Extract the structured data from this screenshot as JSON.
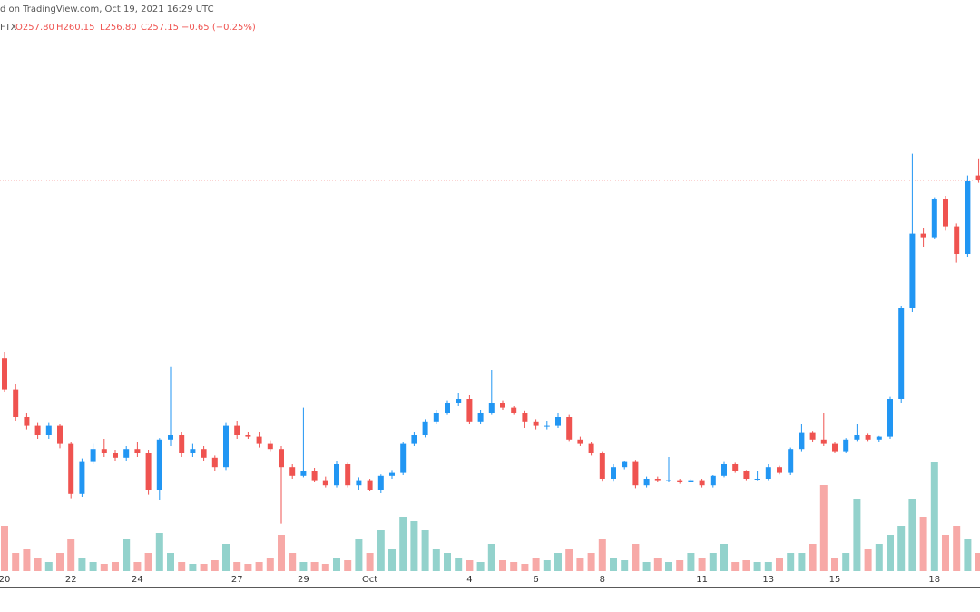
{
  "chart_data": {
    "type": "candlestick",
    "header": {
      "caption": "d on TradingView.com, Oct 19, 2021 16:29 UTC",
      "symbol": "FTX",
      "open": "O257.80",
      "high": "H260.15",
      "low": "L256.80",
      "close": "C257.15",
      "change": "−0.65 (−0.25%)"
    },
    "categories": [
      "20",
      null,
      null,
      null,
      null,
      null,
      "22",
      null,
      null,
      null,
      null,
      null,
      "24",
      null,
      null,
      null,
      null,
      null,
      null,
      null,
      null,
      "27",
      null,
      null,
      null,
      null,
      null,
      "29",
      null,
      null,
      null,
      null,
      null,
      "Oct",
      null,
      null,
      null,
      null,
      null,
      null,
      null,
      null,
      "4",
      null,
      null,
      null,
      null,
      null,
      "6",
      null,
      null,
      null,
      null,
      null,
      "8",
      null,
      null,
      null,
      null,
      null,
      null,
      null,
      null,
      "11",
      null,
      null,
      null,
      null,
      null,
      "13",
      null,
      null,
      null,
      null,
      null,
      "15",
      null,
      null,
      null,
      null,
      null,
      null,
      null,
      null,
      "18",
      null,
      null,
      null,
      null
    ],
    "open": [
      232.6,
      228.3,
      224.5,
      223.3,
      222,
      223.3,
      220.8,
      213.9,
      218.3,
      220.1,
      219.5,
      218.9,
      220.1,
      219.5,
      214.5,
      221.4,
      222,
      219.5,
      220.1,
      218.9,
      217.6,
      223.3,
      222,
      221.8,
      220.8,
      220.1,
      217.6,
      216.4,
      217,
      215.8,
      215.1,
      218,
      215.1,
      215.8,
      214.5,
      216.4,
      216.8,
      220.8,
      222,
      223.9,
      225.1,
      226.4,
      227,
      223.9,
      225.1,
      226.4,
      225.8,
      225.1,
      223.9,
      223.3,
      223.3,
      224.5,
      221.4,
      220.8,
      219.5,
      216,
      217.6,
      218.3,
      215.1,
      216,
      215.8,
      215.8,
      215.5,
      215.8,
      215.1,
      216.4,
      218,
      217,
      216,
      216,
      217.6,
      216.8,
      220.1,
      222.3,
      221.4,
      220.8,
      219.8,
      221.4,
      222,
      221.4,
      221.8,
      227,
      239.5,
      249.8,
      249.3,
      254.5,
      250.8,
      247,
      257.8
    ],
    "high": [
      233.5,
      229,
      225,
      223.8,
      223.8,
      223.5,
      221,
      218.8,
      220.8,
      221.5,
      220,
      220.5,
      221,
      220,
      221.6,
      231.4,
      222.5,
      220.8,
      220.5,
      219.2,
      223.8,
      224,
      222.5,
      222.5,
      221.3,
      220.5,
      218,
      225.8,
      217.5,
      216.3,
      218.5,
      218.2,
      216.2,
      216,
      216.6,
      217.2,
      221,
      222.5,
      224.2,
      225.5,
      226.8,
      227.8,
      227.5,
      225.5,
      231,
      226.8,
      226,
      225.4,
      224.2,
      224,
      225,
      224.8,
      221.8,
      221,
      219.8,
      218,
      218.5,
      218.6,
      216.3,
      216.3,
      219,
      216,
      216,
      216,
      216.5,
      218.3,
      218.2,
      217.2,
      217,
      218,
      217.8,
      220.3,
      223.5,
      222.6,
      225,
      221,
      221.6,
      223.5,
      222.2,
      221.9,
      227.3,
      239.8,
      260.8,
      250.5,
      254.8,
      255,
      251.2,
      257.8,
      260.15
    ],
    "low": [
      228,
      224,
      222.8,
      221.5,
      221.5,
      220.2,
      213.3,
      213.5,
      218,
      219,
      218.5,
      218.5,
      219,
      213.8,
      213,
      220.5,
      219,
      219,
      218.5,
      217,
      217.2,
      221.5,
      221.5,
      220.3,
      219.8,
      209.8,
      216,
      216.2,
      215.5,
      214.8,
      214.8,
      214.8,
      214.5,
      214.3,
      214,
      216,
      216.5,
      220.5,
      221.7,
      223.5,
      224.8,
      226,
      223.5,
      223.5,
      224.8,
      225.5,
      224.8,
      223,
      222.8,
      222.8,
      223,
      221.2,
      220.5,
      219.2,
      215.6,
      215.6,
      217.3,
      214.7,
      214.8,
      215.5,
      215.5,
      215.3,
      215.5,
      214.8,
      214.8,
      216.2,
      216.8,
      215.8,
      215.8,
      215.8,
      216.6,
      216.5,
      219.8,
      221,
      220.5,
      219.5,
      219.5,
      221.2,
      221.2,
      221,
      221.5,
      226.5,
      239,
      248,
      249,
      250.2,
      245.8,
      246.5,
      256.8
    ],
    "close": [
      228.3,
      224.5,
      223.3,
      222,
      223.3,
      220.8,
      213.9,
      218.3,
      220.1,
      219.5,
      218.9,
      220.1,
      219.5,
      214.5,
      221.4,
      222,
      219.5,
      220.1,
      218.9,
      217.6,
      223.3,
      222,
      221.8,
      220.8,
      220.1,
      217.6,
      216.4,
      217,
      215.8,
      215.1,
      218,
      215.1,
      215.8,
      214.5,
      216.4,
      216.8,
      220.8,
      222,
      223.9,
      225.1,
      226.4,
      227,
      223.9,
      225.1,
      226.4,
      225.8,
      225.1,
      223.9,
      223.3,
      223.3,
      224.5,
      221.4,
      220.8,
      219.5,
      216,
      217.6,
      218.3,
      215.1,
      216,
      215.8,
      215.8,
      215.5,
      215.8,
      215.1,
      216.4,
      218,
      217,
      216,
      216,
      217.6,
      216.8,
      220.1,
      222.3,
      221.4,
      220.8,
      219.8,
      221.4,
      222,
      221.4,
      221.8,
      227,
      239.5,
      249.8,
      249.3,
      254.5,
      250.8,
      247,
      257,
      257.15
    ],
    "volume": [
      50,
      20,
      25,
      15,
      10,
      20,
      35,
      15,
      10,
      8,
      10,
      35,
      10,
      20,
      42,
      20,
      10,
      8,
      8,
      12,
      30,
      10,
      8,
      10,
      15,
      40,
      20,
      10,
      10,
      8,
      15,
      12,
      35,
      20,
      45,
      25,
      60,
      55,
      45,
      25,
      20,
      15,
      12,
      10,
      30,
      12,
      10,
      8,
      15,
      12,
      20,
      25,
      15,
      20,
      35,
      15,
      12,
      30,
      10,
      15,
      10,
      12,
      20,
      15,
      20,
      30,
      10,
      12,
      10,
      10,
      15,
      20,
      20,
      30,
      95,
      15,
      20,
      80,
      25,
      30,
      40,
      50,
      80,
      60,
      120,
      40,
      50,
      35,
      20
    ],
    "ylim": [
      201,
      282
    ],
    "vlim": [
      0,
      150
    ],
    "colors": {
      "up": "#2196f3",
      "down": "#ef5350",
      "volume_up": "#93d2cc",
      "volume_down": "#f7a9a7"
    }
  }
}
